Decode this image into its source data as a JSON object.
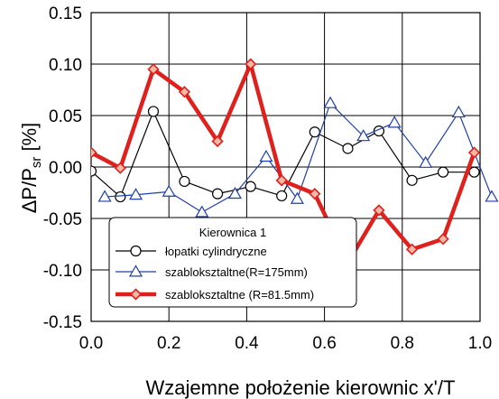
{
  "chart_data": {
    "type": "line",
    "xlabel": "Wzajemne położenie kierownic x'/T",
    "ylabel": "ΔP/P",
    "ylabel_sub": "sr",
    "ylabel_unit": " [%]",
    "xlim": [
      0.0,
      1.0
    ],
    "ylim": [
      -0.15,
      0.15
    ],
    "x_ticks": [
      0.0,
      0.2,
      0.4,
      0.6,
      0.8,
      1.0
    ],
    "x_tick_labels": [
      "0.0",
      "0.2",
      "0.4",
      "0.6",
      "0.8",
      "1.0"
    ],
    "y_ticks": [
      0.15,
      0.1,
      0.05,
      0.0,
      -0.05,
      -0.1,
      -0.15
    ],
    "y_tick_labels": [
      "0.15",
      "0.10",
      "0.05",
      "0.00",
      "-0.05",
      "-0.10",
      "-0.15"
    ],
    "grid": true,
    "legend": {
      "title": "Kierownica 1",
      "placement": "bottom-left"
    },
    "series": [
      {
        "name": "łopatki cylindryczne",
        "color": "#000000",
        "marker": "circle",
        "line_width": 1.2,
        "x": [
          0.0,
          0.075,
          0.16,
          0.24,
          0.325,
          0.41,
          0.49,
          0.575,
          0.66,
          0.74,
          0.825,
          0.905,
          0.985
        ],
        "y": [
          -0.004,
          -0.029,
          0.054,
          -0.014,
          -0.026,
          -0.019,
          -0.028,
          0.034,
          0.018,
          0.035,
          -0.013,
          -0.005,
          -0.005
        ]
      },
      {
        "name": "szabloksztaltne(R=175mm)",
        "color": "#1f3fa8",
        "marker": "triangle",
        "line_width": 1.2,
        "x": [
          0.035,
          0.115,
          0.2,
          0.285,
          0.37,
          0.45,
          0.53,
          0.615,
          0.7,
          0.78,
          0.86,
          0.945,
          1.03
        ],
        "y": [
          -0.029,
          -0.027,
          -0.024,
          -0.044,
          -0.026,
          0.01,
          -0.031,
          0.062,
          0.03,
          0.043,
          0.004,
          0.053,
          -0.029
        ]
      },
      {
        "name": "szabloksztaltne (R=81.5mm)",
        "color": "#e0201c",
        "marker": "diamond",
        "line_width": 4.5,
        "x": [
          0.0,
          0.075,
          0.16,
          0.24,
          0.325,
          0.41,
          0.49,
          0.575,
          0.66,
          0.74,
          0.825,
          0.905,
          0.985
        ],
        "y": [
          0.014,
          -0.001,
          0.095,
          0.073,
          0.025,
          0.1,
          -0.013,
          -0.026,
          -0.093,
          -0.042,
          -0.08,
          -0.07,
          0.014
        ]
      }
    ]
  }
}
